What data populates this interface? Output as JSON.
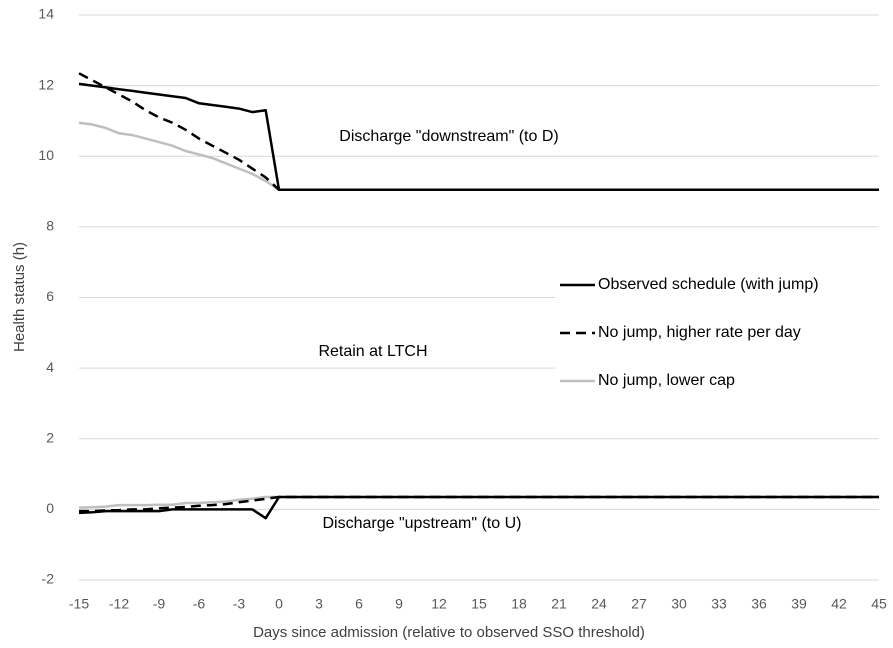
{
  "chart_data": {
    "type": "line",
    "x_label": "Days since admission (relative to observed SSO threshold)",
    "y_label": "Health status (h)",
    "annotations": [
      "Discharge \"downstream\" (to D)",
      "Retain at LTCH",
      "Discharge \"upstream\" (to U)"
    ],
    "x": [
      -15,
      -14,
      -13,
      -12,
      -11,
      -10,
      -9,
      -8,
      -7,
      -6,
      -5,
      -4,
      -3,
      -2,
      -1,
      0,
      45
    ],
    "series": [
      {
        "name": "Observed schedule (with jump)",
        "color": "#000000",
        "dash": "solid",
        "upper": [
          12.05,
          12.0,
          11.95,
          11.9,
          11.85,
          11.8,
          11.75,
          11.7,
          11.65,
          11.5,
          11.45,
          11.4,
          11.35,
          11.25,
          11.3,
          9.05,
          9.05
        ],
        "lower": [
          -0.1,
          -0.08,
          -0.05,
          -0.05,
          -0.05,
          -0.05,
          -0.05,
          0,
          0,
          0,
          0,
          0,
          0,
          0,
          -0.25,
          0.35,
          0.35
        ]
      },
      {
        "name": "No jump, higher rate per day",
        "color": "#000000",
        "dash": "dashed",
        "upper": [
          12.35,
          12.15,
          11.95,
          11.75,
          11.55,
          11.3,
          11.1,
          10.95,
          10.75,
          10.5,
          10.3,
          10.1,
          9.9,
          9.65,
          9.4,
          9.05,
          9.05
        ],
        "lower": [
          -0.05,
          -0.05,
          -0.03,
          -0.02,
          0,
          0,
          0.03,
          0.05,
          0.07,
          0.1,
          0.12,
          0.15,
          0.2,
          0.25,
          0.3,
          0.35,
          0.35
        ]
      },
      {
        "name": "No jump, lower cap",
        "color": "#bfbfbf",
        "dash": "solid",
        "upper": [
          10.95,
          10.9,
          10.8,
          10.65,
          10.6,
          10.5,
          10.4,
          10.3,
          10.15,
          10.05,
          9.95,
          9.8,
          9.65,
          9.5,
          9.3,
          9.05,
          9.05
        ],
        "lower": [
          0.05,
          0.06,
          0.08,
          0.12,
          0.12,
          0.12,
          0.13,
          0.13,
          0.18,
          0.18,
          0.2,
          0.22,
          0.27,
          0.3,
          0.35,
          0.35,
          0.35
        ]
      }
    ],
    "xlim": [
      -15,
      45
    ],
    "xticks": [
      -15,
      -12,
      -9,
      -6,
      -3,
      0,
      3,
      6,
      9,
      12,
      15,
      18,
      21,
      24,
      27,
      30,
      33,
      36,
      39,
      42,
      45
    ],
    "ylim": [
      -2,
      14
    ],
    "yticks": [
      -2,
      0,
      2,
      4,
      6,
      8,
      10,
      12,
      14
    ],
    "grid": true,
    "legend": "center-right"
  }
}
